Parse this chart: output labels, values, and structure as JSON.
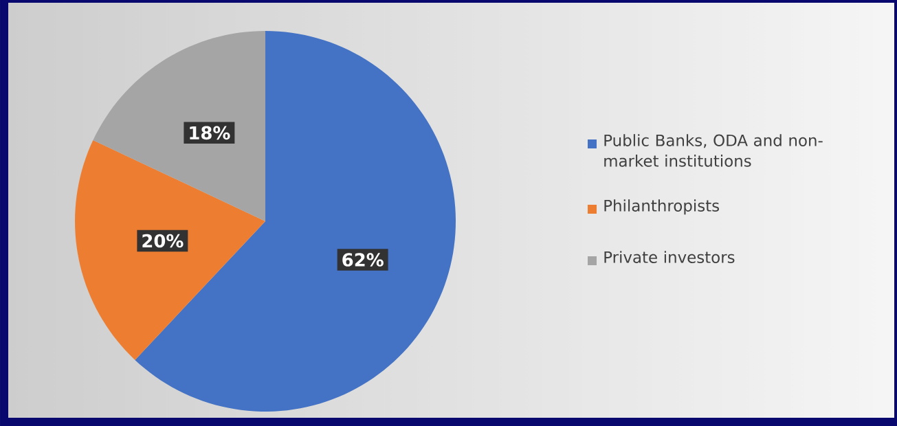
{
  "chart_data": {
    "type": "pie",
    "categories": [
      "Public Banks, ODA and non-market institutions",
      "Philanthropists",
      "Private investors"
    ],
    "values": [
      62,
      20,
      18
    ],
    "colors": [
      "#4472c4",
      "#ed7d31",
      "#a5a5a5"
    ],
    "value_labels": [
      "62%",
      "20%",
      "18%"
    ],
    "legend": "right"
  }
}
